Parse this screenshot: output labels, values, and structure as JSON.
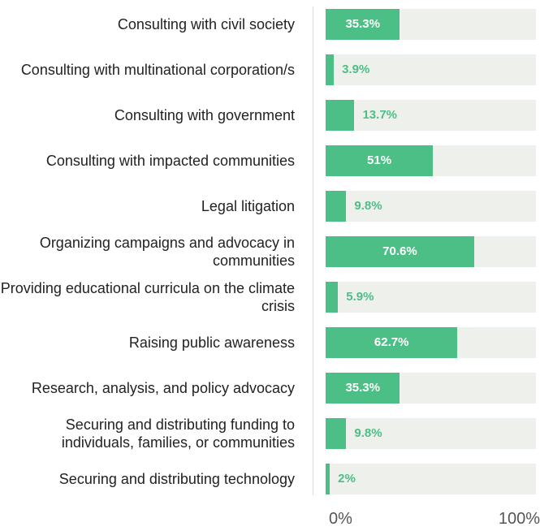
{
  "chart_data": {
    "type": "bar",
    "orientation": "horizontal",
    "categories": [
      "Consulting with civil society",
      "Consulting with multinational corporation/s",
      "Consulting with government",
      "Consulting with impacted communities",
      "Legal litigation",
      "Organizing campaigns and advocacy in communities",
      "Providing educational curricula on the climate crisis",
      "Raising public awareness",
      "Research, analysis, and policy advocacy",
      "Securing and distributing funding to individuals, families, or communities",
      "Securing and distributing technology"
    ],
    "values": [
      35.3,
      3.9,
      13.7,
      51,
      9.8,
      70.6,
      5.9,
      62.7,
      35.3,
      9.8,
      2
    ],
    "value_labels": [
      "35.3%",
      "3.9%",
      "13.7%",
      "51%",
      "9.8%",
      "70.6%",
      "5.9%",
      "62.7%",
      "35.3%",
      "9.8%",
      "2%"
    ],
    "color": "#4cbf86",
    "xlim": [
      0,
      100
    ],
    "xticks": [
      {
        "value": 0,
        "label": "0%"
      },
      {
        "value": 100,
        "label": "100%"
      }
    ]
  }
}
